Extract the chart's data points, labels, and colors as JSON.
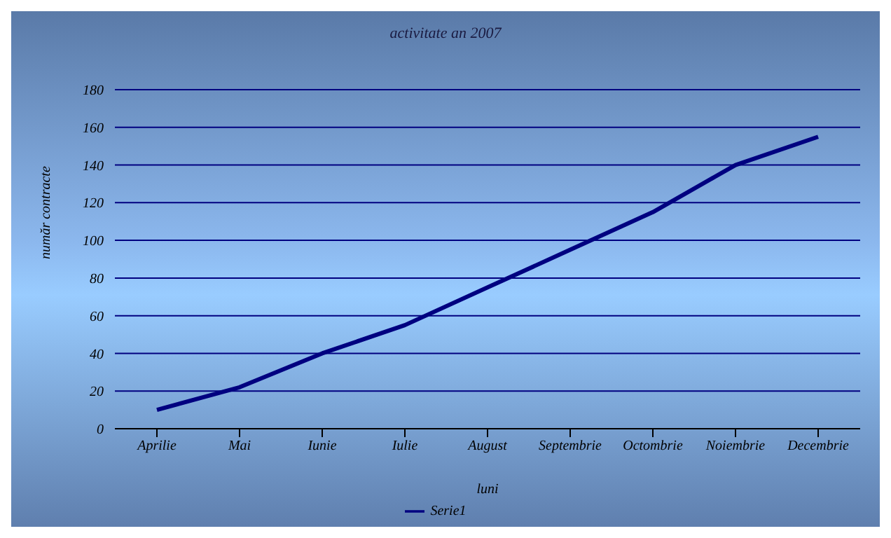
{
  "chart_data": {
    "type": "line",
    "title": "activitate an 2007",
    "xlabel": "luni",
    "ylabel": "număr contracte",
    "categories": [
      "Aprilie",
      "Mai",
      "Iunie",
      "Iulie",
      "August",
      "Septembrie",
      "Octombrie",
      "Noiembrie",
      "Decembrie"
    ],
    "series": [
      {
        "name": "Serie1",
        "color": "#000080",
        "values": [
          10,
          22,
          40,
          55,
          75,
          95,
          115,
          140,
          155
        ]
      }
    ],
    "ylim": [
      0,
      180
    ],
    "yticks": [
      0,
      20,
      40,
      60,
      80,
      100,
      120,
      140,
      160,
      180
    ],
    "grid": "y",
    "legend": "bottom",
    "marker": "none",
    "line_style": "solid"
  }
}
